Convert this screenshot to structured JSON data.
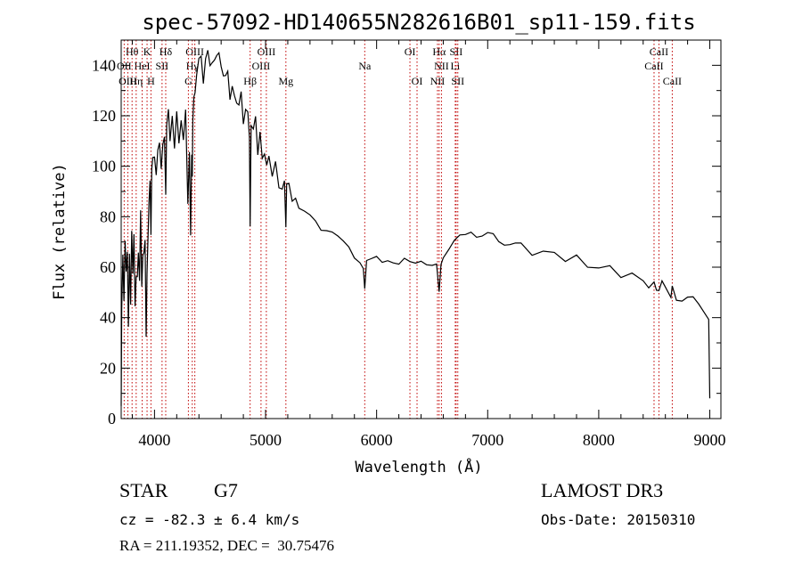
{
  "chart_data": {
    "type": "line",
    "title": "spec-57092-HD140655N282616B01_sp11-159.fits",
    "xlabel": "Wavelength (Å)",
    "ylabel": "Flux (relative)",
    "xlim": [
      3700,
      9100
    ],
    "ylim": [
      0,
      150
    ],
    "xticks": [
      4000,
      5000,
      6000,
      7000,
      8000,
      9000
    ],
    "yticks": [
      0,
      20,
      40,
      60,
      80,
      100,
      120,
      140
    ],
    "series": [
      {
        "name": "flux",
        "x": [
          3700,
          3705,
          3715,
          3725,
          3735,
          3745,
          3755,
          3765,
          3775,
          3785,
          3795,
          3805,
          3815,
          3825,
          3835,
          3845,
          3855,
          3865,
          3875,
          3885,
          3895,
          3905,
          3915,
          3925,
          3933,
          3940,
          3950,
          3960,
          3968,
          3975,
          3985,
          4000,
          4015,
          4030,
          4045,
          4060,
          4075,
          4090,
          4101,
          4110,
          4125,
          4140,
          4160,
          4180,
          4200,
          4220,
          4240,
          4260,
          4280,
          4300,
          4315,
          4325,
          4335,
          4340,
          4345,
          4355,
          4365,
          4380,
          4400,
          4420,
          4440,
          4460,
          4480,
          4500,
          4520,
          4540,
          4560,
          4580,
          4600,
          4620,
          4640,
          4660,
          4680,
          4700,
          4720,
          4740,
          4760,
          4780,
          4800,
          4820,
          4840,
          4855,
          4861,
          4870,
          4890,
          4910,
          4930,
          4950,
          4970,
          4990,
          5010,
          5030,
          5060,
          5090,
          5120,
          5150,
          5170,
          5183,
          5190,
          5210,
          5240,
          5270,
          5300,
          5350,
          5400,
          5450,
          5500,
          5550,
          5600,
          5650,
          5700,
          5750,
          5800,
          5850,
          5880,
          5893,
          5910,
          5950,
          6000,
          6050,
          6100,
          6150,
          6200,
          6250,
          6300,
          6350,
          6400,
          6450,
          6500,
          6540,
          6563,
          6580,
          6600,
          6650,
          6700,
          6750,
          6800,
          6850,
          6900,
          6950,
          7000,
          7050,
          7100,
          7150,
          7200,
          7250,
          7300,
          7400,
          7500,
          7600,
          7700,
          7800,
          7900,
          8000,
          8100,
          8200,
          8300,
          8400,
          8450,
          8498,
          8520,
          8542,
          8570,
          8600,
          8650,
          8662,
          8700,
          8750,
          8800,
          8850,
          8900,
          8950,
          8990,
          9000
        ],
        "y": [
          5,
          40,
          65,
          48,
          70,
          55,
          62,
          35,
          68,
          50,
          78,
          58,
          72,
          45,
          60,
          62,
          70,
          55,
          80,
          50,
          65,
          68,
          72,
          30,
          60,
          75,
          90,
          95,
          70,
          100,
          102,
          108,
          96,
          102,
          112,
          100,
          110,
          106,
          90,
          115,
          120,
          110,
          118,
          112,
          125,
          108,
          122,
          112,
          118,
          85,
          105,
          75,
          110,
          90,
          124,
          130,
          128,
          138,
          140,
          146,
          138,
          142,
          148,
          144,
          138,
          140,
          145,
          140,
          136,
          138,
          134,
          137,
          132,
          133,
          128,
          130,
          124,
          126,
          118,
          120,
          116,
          112,
          82,
          118,
          112,
          120,
          110,
          114,
          104,
          110,
          100,
          103,
          96,
          100,
          92,
          90,
          96,
          75,
          94,
          93,
          88,
          86,
          84,
          82,
          80,
          78,
          75,
          75,
          74,
          72,
          70,
          68,
          64,
          62,
          58,
          52,
          64,
          63,
          64,
          62,
          63,
          62,
          61,
          63,
          62,
          62,
          63,
          61,
          60,
          62,
          50,
          60,
          64,
          68,
          71,
          72,
          72,
          74,
          73,
          73,
          73,
          72,
          70,
          70,
          70,
          69,
          68,
          66,
          66,
          65,
          64,
          63,
          61,
          60,
          59,
          58,
          56,
          55,
          54,
          52,
          52,
          51,
          55,
          50,
          48,
          51,
          49,
          48,
          47,
          46,
          45,
          44,
          40,
          8
        ]
      }
    ],
    "spectral_lines": [
      {
        "label": "Hθ",
        "x": 3798,
        "row": 1
      },
      {
        "label": "OII",
        "x": 3727,
        "row": 2
      },
      {
        "label": "HeI",
        "x": 3889,
        "row": 2
      },
      {
        "label": "OIII",
        "x": 3760,
        "row": 3
      },
      {
        "label": "Hη",
        "x": 3835,
        "row": 3
      },
      {
        "label": "K",
        "x": 3933,
        "row": 1
      },
      {
        "label": "SII",
        "x": 4068,
        "row": 2
      },
      {
        "label": "H",
        "x": 3968,
        "row": 3
      },
      {
        "label": "Hδ",
        "x": 4101,
        "row": 1
      },
      {
        "label": "OIII",
        "x": 4363,
        "row": 1
      },
      {
        "label": "Hγ",
        "x": 4340,
        "row": 2
      },
      {
        "label": "G",
        "x": 4305,
        "row": 3
      },
      {
        "label": "OIII",
        "x": 5007,
        "row": 1
      },
      {
        "label": "OIII",
        "x": 4959,
        "row": 2
      },
      {
        "label": "Hβ",
        "x": 4861,
        "row": 3
      },
      {
        "label": "Mg",
        "x": 5183,
        "row": 3
      },
      {
        "label": "Na",
        "x": 5893,
        "row": 2
      },
      {
        "label": "OI",
        "x": 6300,
        "row": 1
      },
      {
        "label": "OI",
        "x": 6364,
        "row": 3
      },
      {
        "label": "Hα",
        "x": 6563,
        "row": 1
      },
      {
        "label": "SII",
        "x": 6716,
        "row": 1
      },
      {
        "label": "NII",
        "x": 6584,
        "row": 2
      },
      {
        "label": "Li",
        "x": 6708,
        "row": 2
      },
      {
        "label": "NII",
        "x": 6548,
        "row": 3
      },
      {
        "label": "SII",
        "x": 6731,
        "row": 3
      },
      {
        "label": "CaII",
        "x": 8542,
        "row": 1
      },
      {
        "label": "CaII",
        "x": 8498,
        "row": 2
      },
      {
        "label": "CaII",
        "x": 8662,
        "row": 3
      }
    ]
  },
  "info": {
    "class_label": "STAR",
    "subclass": "G7",
    "survey": "LAMOST DR3",
    "velocity": "cz = -82.3 ± 6.4 km/s",
    "obs_date": "Obs-Date: 20150310",
    "coords": "RA = 211.19352, DEC =  30.75476"
  }
}
